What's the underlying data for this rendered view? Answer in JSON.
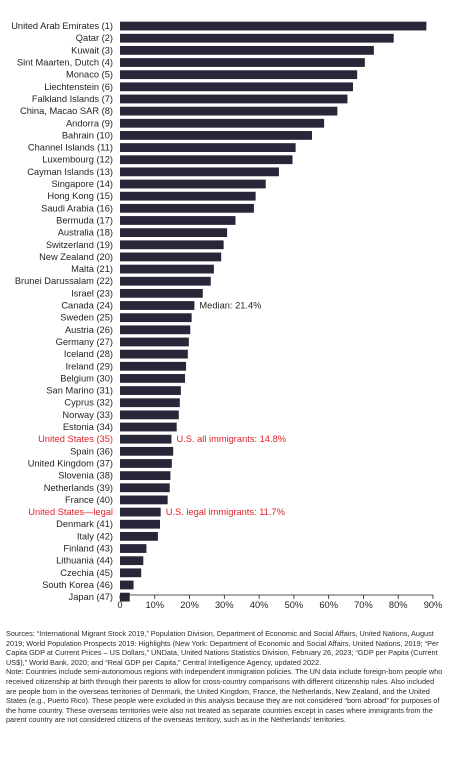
{
  "chart_data": {
    "type": "bar",
    "orientation": "horizontal",
    "categories": [
      "United Arab Emirates (1)",
      "Qatar (2)",
      "Kuwait (3)",
      "Sint Maarten, Dutch (4)",
      "Monaco (5)",
      "Liechtenstein (6)",
      "Falkland Islands (7)",
      "China, Macao SAR (8)",
      "Andorra (9)",
      "Bahrain (10)",
      "Channel Islands (11)",
      "Luxembourg (12)",
      "Cayman Islands (13)",
      "Singapore (14)",
      "Hong Kong (15)",
      "Saudi Arabia (16)",
      "Bermuda (17)",
      "Australia (18)",
      "Switzerland (19)",
      "New Zealand (20)",
      "Malta (21)",
      "Brunei Darussalam (22)",
      "Israel (23)",
      "Canada (24)",
      "Sweden (25)",
      "Austria (26)",
      "Germany (27)",
      "Iceland (28)",
      "Ireland (29)",
      "Belgium (30)",
      "San Marino (31)",
      "Cyprus (32)",
      "Norway (33)",
      "Estonia (34)",
      "United States (35)",
      "Spain (36)",
      "United Kingdom (37)",
      "Slovenia (38)",
      "Netherlands (39)",
      "France (40)",
      "United States—legal",
      "Denmark (41)",
      "Italy (42)",
      "Finland (43)",
      "Lithuania (44)",
      "Czechia (45)",
      "South Korea (46)",
      "Japan (47)"
    ],
    "values": [
      88.1,
      78.7,
      73.0,
      70.4,
      68.2,
      67.0,
      65.4,
      62.5,
      58.7,
      55.2,
      50.5,
      49.6,
      45.7,
      41.9,
      39.0,
      38.5,
      33.2,
      30.8,
      29.8,
      29.1,
      27.0,
      26.1,
      23.8,
      21.4,
      20.6,
      20.2,
      19.8,
      19.5,
      19.0,
      18.7,
      17.5,
      17.2,
      16.9,
      16.3,
      14.8,
      15.3,
      14.9,
      14.5,
      14.3,
      13.7,
      11.7,
      11.5,
      10.9,
      7.6,
      6.7,
      6.1,
      3.9,
      2.8
    ],
    "highlight_categories": [
      "United States (35)",
      "United States—legal"
    ],
    "highlight_color": "#e32129",
    "bar_color": "#2a2639",
    "ylim": [
      0,
      90
    ],
    "xticks": [
      "0",
      "10%",
      "20%",
      "30%",
      "40%",
      "50%",
      "60%",
      "70%",
      "80%",
      "90%"
    ],
    "grid": false,
    "annotations": [
      {
        "category": "Canada (24)",
        "text": "Median: 21.4%",
        "color": "#231f20"
      },
      {
        "category": "United States (35)",
        "text": "U.S. all immigrants: 14.8%",
        "color": "#e32129"
      },
      {
        "category": "United States—legal",
        "text": "U.S. legal immigrants: 11.7%",
        "color": "#e32129"
      }
    ]
  },
  "notes": {
    "sources": "Sources: “International Migrant Stock 2019,” Population Division, Department of Economic and Social Affairs, United Nations, August 2019; World Population Prospects 2019: Highlights (New York: Department of Economic and Social Affairs, United Nations, 2019; “Per Capita GDP at Current Prices – US Dollars,” UNData, United Nations Statistics Division, February 26, 2023; “GDP per Papita (Current US$),” World Bank, 2020; and “Real GDP per Capita,” Central Intelligence Agency, updated 2022.",
    "note": "Note: Countries include semi-autonomous regions with independent immigration policies. The UN data include foreign-born people who received citizenship at birth through their parents to allow for cross-country comparisons with different citizenship rules. Also included are people born in the overseas territories of Denmark, the United Kingdom, France, the Netherlands, New Zealand, and the United States (e.g., Puerto Rico). These people were excluded in this analysis because they are not considered “born abroad” for purposes of the home country. These overseas territories were also not treated as separate countries except in cases where immigrants from the parent country are not considered citizens of the overseas territory, such as in the Netherlands’ territories."
  }
}
